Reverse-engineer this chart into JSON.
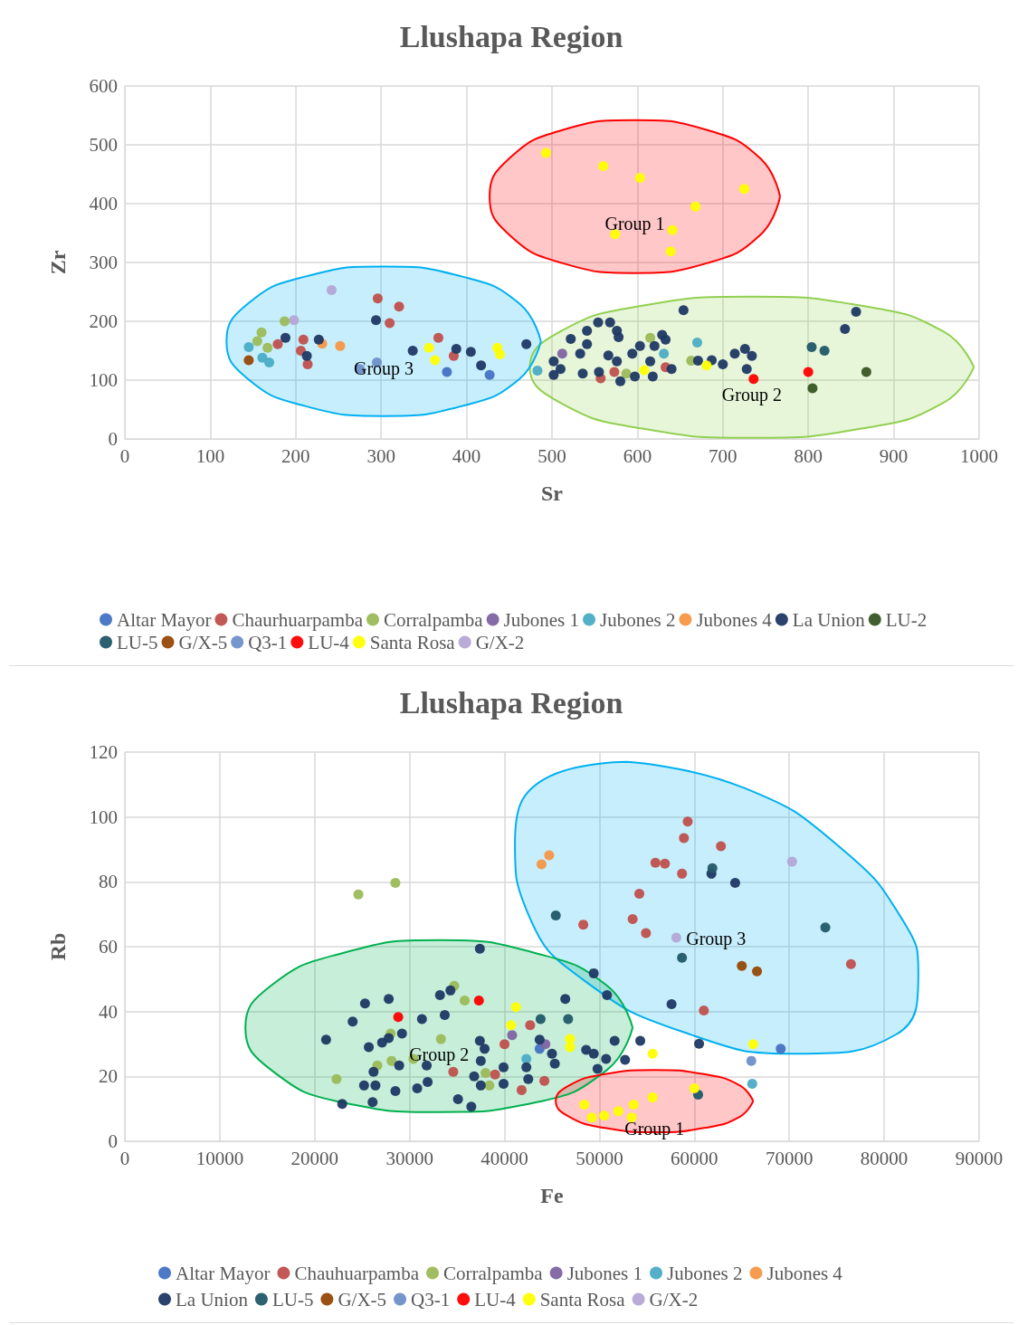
{
  "chart_data": [
    {
      "type": "scatter",
      "title": "Llushapa Region",
      "xlabel": "Sr",
      "ylabel": "Zr",
      "xlim": [
        0,
        1000
      ],
      "xticks": [
        0,
        100,
        200,
        300,
        400,
        500,
        600,
        700,
        800,
        900,
        1000
      ],
      "ylim": [
        0,
        600
      ],
      "yticks": [
        0,
        100,
        200,
        300,
        400,
        500,
        600
      ],
      "grid": true,
      "legend": "bottom",
      "marker": "circle",
      "annotations": [
        "Group 1",
        "Group 2",
        "Group 3"
      ],
      "series": [
        {
          "type": "area",
          "marker": "none",
          "color": "#ff0000",
          "x": [
            767,
            744,
            682,
            597,
            512,
            450,
            427,
            450,
            512,
            597,
            682,
            744,
            767
          ],
          "values": [
            412,
            477,
            525,
            542,
            525,
            477,
            412,
            347,
            299,
            282,
            299,
            347,
            412
          ]
        },
        {
          "type": "area",
          "marker": "none",
          "color": "#92d050",
          "x": [
            994,
            959,
            864,
            734,
            604,
            509,
            474,
            509,
            604,
            734,
            864,
            959,
            994
          ],
          "values": [
            122,
            182,
            226,
            242,
            226,
            182,
            122,
            62,
            18,
            2,
            18,
            62,
            122
          ]
        },
        {
          "type": "area",
          "marker": "none",
          "color": "#00b0f0",
          "x": [
            487,
            462,
            395,
            303,
            211,
            144,
            119,
            144,
            211,
            303,
            395,
            462,
            487
          ],
          "values": [
            166,
            230,
            276,
            293,
            276,
            230,
            166,
            102,
            56,
            39,
            56,
            102,
            166
          ]
        },
        {
          "name": "Altar Mayor",
          "color": "#4472c4",
          "x": [
            377,
            427
          ],
          "values": [
            114,
            109
          ]
        },
        {
          "name": "Chaurhuarpamba",
          "color": "#c0504d",
          "x": [
            296,
            321,
            310,
            209,
            214,
            206,
            179,
            367,
            385,
            557,
            633,
            573
          ],
          "values": [
            239,
            225,
            197,
            169,
            127,
            150,
            161,
            172,
            141,
            103,
            122,
            114
          ]
        },
        {
          "name": "Corralpamba",
          "color": "#9bbb59",
          "x": [
            160,
            187,
            167,
            155,
            615,
            663,
            587
          ],
          "values": [
            181,
            200,
            155,
            166,
            172,
            133,
            111
          ]
        },
        {
          "name": "Jubones 1",
          "color": "#8064a2",
          "x": [
            512
          ],
          "values": [
            145
          ]
        },
        {
          "name": "Jubones 2",
          "color": "#4bacc6",
          "x": [
            169,
            161,
            145,
            670,
            631,
            483
          ],
          "values": [
            130,
            138,
            156,
            164,
            145,
            116
          ]
        },
        {
          "name": "Jubones 4",
          "color": "#f79646",
          "x": [
            252,
            231
          ],
          "values": [
            158,
            162
          ]
        },
        {
          "name": "La Union",
          "color": "#1f3864",
          "x": [
            294,
            188,
            227,
            213,
            337,
            388,
            405,
            417,
            470,
            654,
            554,
            568,
            576,
            578,
            541,
            522,
            541,
            533,
            502,
            510,
            502,
            536,
            555,
            566,
            576,
            594,
            603,
            629,
            633,
            620,
            615,
            597,
            618,
            640,
            580,
            671,
            687,
            700,
            714,
            726,
            734,
            728,
            843,
            856
          ],
          "values": [
            202,
            172,
            169,
            141,
            150,
            153,
            148,
            125,
            161,
            219,
            198,
            198,
            184,
            173,
            184,
            170,
            161,
            145,
            132,
            119,
            109,
            111,
            114,
            142,
            132,
            145,
            158,
            177,
            169,
            158,
            132,
            106,
            106,
            119,
            98,
            133,
            134,
            127,
            145,
            153,
            141,
            119,
            187,
            216
          ]
        },
        {
          "name": "LU-2",
          "color": "#375623",
          "x": [
            805,
            868
          ],
          "values": [
            86,
            114
          ]
        },
        {
          "name": "LU-5",
          "color": "#215968",
          "x": [
            804,
            819
          ],
          "values": [
            156,
            150
          ]
        },
        {
          "name": "G/X-5",
          "color": "#974706",
          "x": [
            145
          ],
          "values": [
            134
          ]
        },
        {
          "name": "Q3-1",
          "color": "#6f8fca",
          "x": [
            275,
            295
          ],
          "values": [
            119,
            130
          ]
        },
        {
          "name": "LU-4",
          "color": "#ff0000",
          "x": [
            736,
            800
          ],
          "values": [
            102,
            114
          ]
        },
        {
          "name": "Santa Rosa",
          "color": "#ffff00",
          "x": [
            493,
            560,
            603,
            725,
            668,
            641,
            574,
            639,
            356,
            363,
            436,
            439,
            608,
            681
          ],
          "values": [
            486,
            464,
            444,
            425,
            395,
            355,
            348,
            319,
            155,
            134,
            155,
            144,
            117,
            125
          ]
        },
        {
          "name": "G/X-2",
          "color": "#b4a7d6",
          "x": [
            242,
            198
          ],
          "values": [
            253,
            202
          ]
        }
      ]
    },
    {
      "type": "scatter",
      "title": "Llushapa Region",
      "xlabel": "Fe",
      "ylabel": "Rb",
      "xlim": [
        0,
        90000
      ],
      "xticks": [
        0,
        10000,
        20000,
        30000,
        40000,
        50000,
        60000,
        70000,
        80000,
        90000
      ],
      "ylim": [
        0,
        120
      ],
      "yticks": [
        0,
        20,
        40,
        60,
        80,
        100,
        120
      ],
      "grid": true,
      "legend": "bottom",
      "marker": "circle",
      "annotations": [
        "Group 3",
        "Group 2",
        "Group 1"
      ],
      "series": [
        {
          "type": "area",
          "marker": "none",
          "color": "#00b0f0",
          "x": [
            52900,
            65200,
            75600,
            82200,
            83600,
            81300,
            70900,
            59500,
            48200,
            42500,
            41100,
            44400,
            52900
          ],
          "values": [
            117,
            109,
            90,
            67,
            52,
            33,
            27,
            33,
            50,
            70,
            92,
            112,
            117
          ]
        },
        {
          "type": "area",
          "marker": "none",
          "color": "#00b050",
          "x": [
            53500,
            50800,
            43300,
            33100,
            22900,
            15400,
            12700,
            15400,
            22900,
            33100,
            43300,
            50800,
            53500
          ],
          "values": [
            35,
            48,
            58,
            62,
            58,
            48,
            35,
            22,
            12,
            9,
            12,
            22,
            35
          ]
        },
        {
          "type": "area",
          "marker": "none",
          "color": "#ff0000",
          "x": [
            66200,
            64800,
            61000,
            55800,
            50600,
            46800,
            45400,
            46800,
            50600,
            55800,
            61000,
            64800,
            66200
          ],
          "values": [
            12.4,
            17.2,
            20.7,
            22,
            20.7,
            17.2,
            12.4,
            7.6,
            4.1,
            2.8,
            4.1,
            7.6,
            12.4
          ]
        },
        {
          "name": "Altar Mayor",
          "color": "#4472c4",
          "x": [
            69100,
            43700
          ],
          "values": [
            28.5,
            28.5
          ]
        },
        {
          "name": "Chauhuarpamba",
          "color": "#c0504d",
          "x": [
            59300,
            58900,
            62800,
            55900,
            56900,
            58700,
            54200,
            48300,
            53500,
            54900,
            76500,
            61000,
            34600,
            40000,
            42700,
            41800,
            44200,
            39000
          ],
          "values": [
            98.6,
            93.5,
            91,
            85.9,
            85.6,
            82.5,
            76.3,
            66.8,
            68.5,
            64.2,
            54.6,
            40.3,
            21.4,
            29.9,
            35.8,
            15.8,
            18.6,
            20.6
          ]
        },
        {
          "name": "Corralpamba",
          "color": "#9bbb59",
          "x": [
            24600,
            28500,
            22300,
            26600,
            28100,
            30400,
            33300,
            35800,
            34700,
            38000,
            38400,
            28000
          ],
          "values": [
            76.1,
            79.7,
            19.2,
            23.4,
            24.8,
            25.4,
            31.5,
            43.4,
            47.9,
            21.1,
            17.2,
            33.2
          ]
        },
        {
          "name": "Jubones 1",
          "color": "#8064a2",
          "x": [
            40800,
            44300
          ],
          "values": [
            32.7,
            29.9
          ]
        },
        {
          "name": "Jubones 2",
          "color": "#4bacc6",
          "x": [
            66100,
            42300
          ],
          "values": [
            17.7,
            25.4
          ]
        },
        {
          "name": "Jubones 4",
          "color": "#f79646",
          "x": [
            44700,
            43900
          ],
          "values": [
            88.2,
            85.4
          ]
        },
        {
          "name": "La Union",
          "color": "#1f3864",
          "x": [
            37400,
            49400,
            50800,
            46400,
            51600,
            54300,
            52700,
            48600,
            49800,
            43700,
            45000,
            45300,
            42300,
            39900,
            39900,
            42500,
            37500,
            36800,
            37500,
            37400,
            37900,
            35100,
            36500,
            33700,
            33200,
            34300,
            31300,
            31800,
            31900,
            30800,
            28500,
            28900,
            26200,
            26400,
            26100,
            25200,
            22900,
            21200,
            25700,
            27100,
            27800,
            24000,
            25300,
            27800,
            29200,
            49400,
            50700,
            61800,
            64300,
            57600,
            60500
          ],
          "values": [
            59.4,
            51.8,
            45.1,
            43.9,
            31,
            31,
            25.1,
            28.2,
            22.3,
            31.3,
            27,
            23.9,
            22.8,
            22.8,
            17.7,
            19.2,
            24.8,
            20,
            17.2,
            31,
            28.5,
            13,
            10.7,
            38.9,
            45.1,
            46.5,
            37.7,
            23.4,
            18.3,
            16.3,
            15.5,
            23.4,
            21.4,
            17.2,
            12.1,
            17.2,
            11.5,
            31.3,
            29,
            30.4,
            31.8,
            36.9,
            42.5,
            43.9,
            33.2,
            27,
            25.4,
            82.5,
            79.7,
            42.3,
            30.1
          ]
        },
        {
          "name": "LU-5",
          "color": "#215968",
          "x": [
            43800,
            46700,
            45400,
            61900,
            73800,
            58700,
            60400
          ],
          "values": [
            37.7,
            37.7,
            69.6,
            84.2,
            65.9,
            56.6,
            14.4
          ]
        },
        {
          "name": "G/X-5",
          "color": "#974706",
          "x": [
            65000,
            66600
          ],
          "values": [
            54.1,
            52.4
          ]
        },
        {
          "name": "Q3-1",
          "color": "#6f8fca",
          "x": [
            66000
          ],
          "values": [
            24.8
          ]
        },
        {
          "name": "LU-4",
          "color": "#ff0000",
          "x": [
            28800,
            37300
          ],
          "values": [
            38.3,
            43.4
          ]
        },
        {
          "name": "Santa Rosa",
          "color": "#ffff00",
          "x": [
            41200,
            40700,
            46900,
            46900,
            55600,
            66200,
            48400,
            49200,
            50500,
            52000,
            53400,
            53600,
            55600,
            60000
          ],
          "values": [
            41.4,
            35.8,
            31.5,
            29,
            27,
            29.9,
            11.3,
            7.3,
            7.9,
            9.3,
            7.3,
            11.3,
            13.5,
            16.3
          ]
        },
        {
          "name": "G/X-2",
          "color": "#b4a7d6",
          "x": [
            70300,
            58100
          ],
          "values": [
            86.2,
            62.8
          ]
        }
      ]
    }
  ]
}
